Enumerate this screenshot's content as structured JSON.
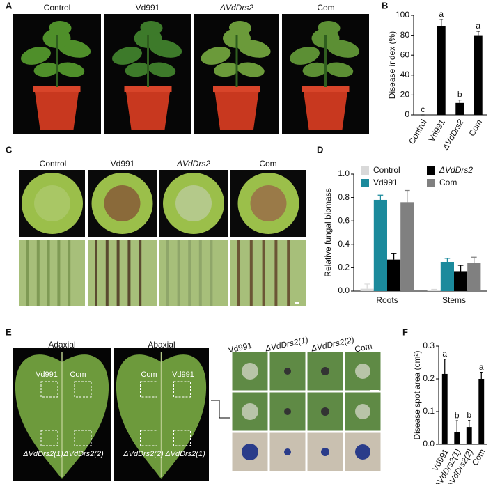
{
  "panel_labels": [
    "A",
    "B",
    "C",
    "D",
    "E",
    "F"
  ],
  "panel_a": {
    "photo_labels": [
      "Control",
      "Vd991",
      "ΔVdDrs2",
      "Com"
    ]
  },
  "panel_c": {
    "photo_labels": [
      "Control",
      "Vd991",
      "ΔVdDrs2",
      "Com"
    ]
  },
  "panel_e": {
    "leaf_labels": [
      "Adaxial",
      "Abaxial"
    ],
    "adaxial_spots": [
      "Vd991",
      "Com",
      "ΔVdDrs2(1)",
      "ΔVdDrs2(2)"
    ],
    "abaxial_spots": [
      "Com",
      "Vd991",
      "ΔVdDrs2(2)",
      "ΔVdDrs2(1)"
    ],
    "photo_labels": [
      "Vd991",
      "ΔVdDrs2(1)",
      "ΔVdDrs2(2)",
      "Com"
    ]
  },
  "chart_data": [
    {
      "type": "bar",
      "y_label": "Disease index (%)",
      "categories": [
        "Control",
        "Vd991",
        "ΔVdDrs2",
        "Com"
      ],
      "values": [
        0,
        89,
        12,
        80
      ],
      "errors": [
        0,
        7,
        3,
        4
      ],
      "color": "#000000",
      "letters": [
        "c",
        "a",
        "b",
        "a"
      ],
      "ylim": [
        0,
        100
      ],
      "yticks": [
        0,
        20,
        40,
        60,
        80,
        100
      ]
    },
    {
      "type": "bar",
      "y_label": "Relative fungal biomass",
      "categories": [
        "Roots",
        "Stems"
      ],
      "series": [
        {
          "name": "Control",
          "color": "#d9d9d9",
          "values": [
            0.02,
            0.005
          ],
          "errors": [
            0.04,
            0.01
          ]
        },
        {
          "name": "Vd991",
          "color": "#1b8a9c",
          "values": [
            0.78,
            0.25
          ],
          "errors": [
            0.04,
            0.03
          ]
        },
        {
          "name": "ΔVdDrs2",
          "color": "#000000",
          "values": [
            0.27,
            0.17
          ],
          "errors": [
            0.05,
            0.05
          ]
        },
        {
          "name": "Com",
          "color": "#808080",
          "values": [
            0.76,
            0.24
          ],
          "errors": [
            0.1,
            0.05
          ]
        }
      ],
      "legend": "top",
      "ylim": [
        0,
        1
      ],
      "yticks": [
        {
          "value": 0,
          "label": "0.0"
        },
        0.2,
        0.4,
        0.6,
        0.8,
        {
          "value": 1,
          "label": "1.0"
        }
      ]
    },
    {
      "type": "bar",
      "y_label": "Disease spot area (cm²)",
      "categories": [
        "Vd991",
        "ΔVdDrs2(1)",
        "ΔVdDrs2(2)",
        "Com"
      ],
      "values": [
        0.215,
        0.037,
        0.053,
        0.2
      ],
      "errors": [
        0.045,
        0.035,
        0.02,
        0.02
      ],
      "color": "#000000",
      "letters": [
        "a",
        "b",
        "b",
        "a"
      ],
      "ylim": [
        0,
        0.3
      ],
      "yticks": [
        {
          "value": 0,
          "label": "0.0"
        },
        0.1,
        0.2,
        0.3
      ]
    }
  ]
}
